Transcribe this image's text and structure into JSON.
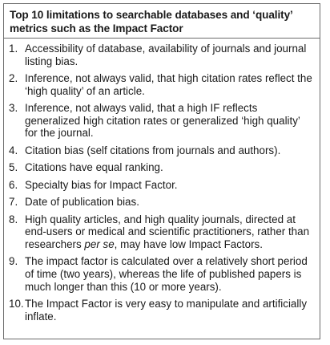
{
  "title": "Top 10 limitations to searchable databases and ‘quality’ metrics such as the Impact Factor",
  "items": [
    {
      "number": "1.",
      "text": "Accessibility of database, availability of journals and journal listing bias."
    },
    {
      "number": "2.",
      "text": "Inference, not always valid, that high citation rates reflect the ‘high quality’ of an article."
    },
    {
      "number": "3.",
      "text": "Inference, not always valid, that a high IF reflects generalized high citation rates or generalized ‘high quality’ for the journal."
    },
    {
      "number": "4.",
      "text": "Citation bias (self citations from journals and authors)."
    },
    {
      "number": "5.",
      "text": "Citations have equal ranking."
    },
    {
      "number": "6.",
      "text": "Specialty bias for Impact Factor."
    },
    {
      "number": "7.",
      "text": "Date of publication bias."
    },
    {
      "number": "8.",
      "text_before": "High quality articles, and high quality journals, directed at end-users or medical and scientific practitioners, rather than researchers ",
      "text_italic": "per se",
      "text_after": ", may have low Impact Factors."
    },
    {
      "number": "9.",
      "text": "The impact factor is calculated over a relatively short period of time (two years), whereas the life of published papers is much longer than this (10 or more years)."
    },
    {
      "number": "10.",
      "text": "The Impact Factor is very easy to manipulate and artificially inflate."
    }
  ]
}
